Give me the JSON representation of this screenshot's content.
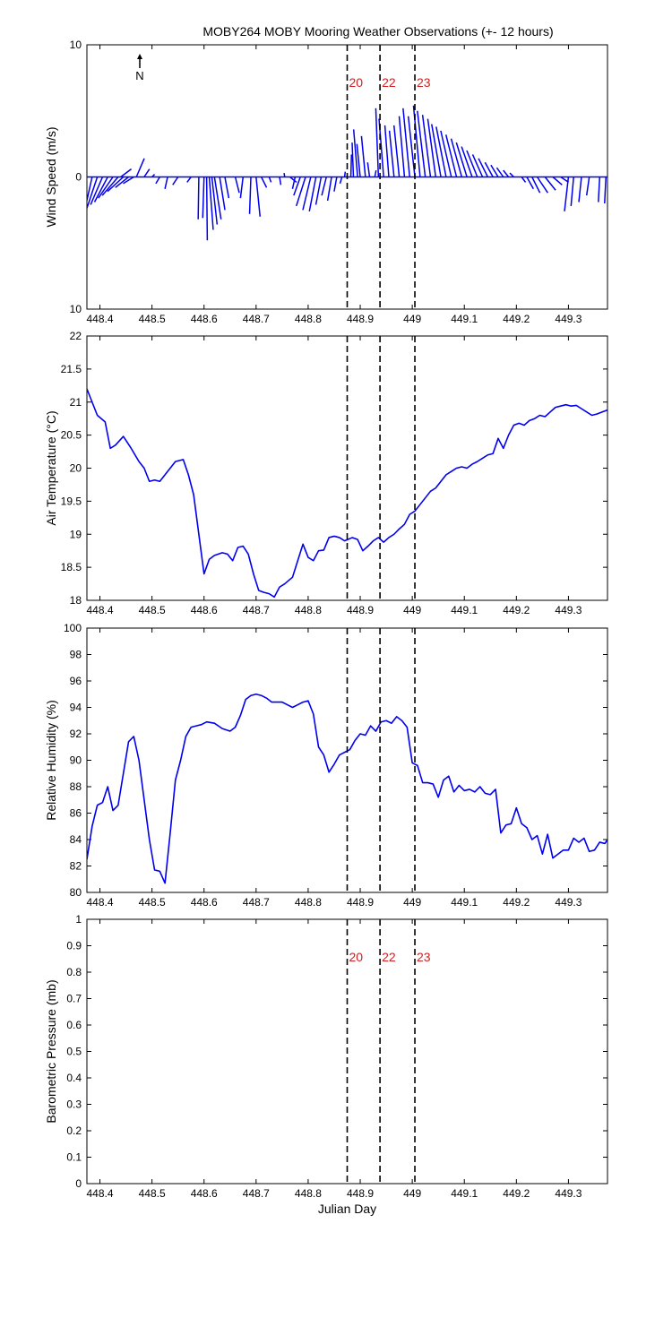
{
  "figure": {
    "title": "MOBY264 MOBY Mooring Weather Observations (+- 12 hours)",
    "north_label": "N"
  },
  "colors": {
    "series": "#0000ee",
    "marker_label": "#cc2222"
  },
  "chart_data": [
    {
      "type": "line",
      "name": "wind",
      "ylabel": "Wind Speed (m/s)",
      "xlabel": "",
      "xlim": [
        448.375,
        449.375
      ],
      "ylim": [
        -10,
        10
      ],
      "ytick_values": [
        -10,
        0,
        10
      ],
      "ytick_labels": [
        "10",
        "0",
        "10"
      ],
      "xtick_values": [
        448.4,
        448.5,
        448.6,
        448.7,
        448.8,
        448.9,
        449.0,
        449.1,
        449.2,
        449.3
      ],
      "xtick_labels": [
        "448.4",
        "448.5",
        "448.6",
        "448.7",
        "448.8",
        "448.9",
        "449",
        "449.1",
        "449.2",
        "449.3"
      ],
      "markers": [
        {
          "x": 448.875,
          "label": "20"
        },
        {
          "x": 448.938,
          "label": "22"
        },
        {
          "x": 449.005,
          "label": "23"
        }
      ],
      "vector_origin_y": 0,
      "vectors": [
        [
          448.375,
          -0.5,
          -3.4
        ],
        [
          448.385,
          -0.6,
          -2.7
        ],
        [
          448.395,
          -0.8,
          -2.4
        ],
        [
          448.405,
          -0.9,
          -2.1
        ],
        [
          448.415,
          -1.0,
          -1.9
        ],
        [
          448.425,
          -1.1,
          -1.6
        ],
        [
          448.435,
          -1.2,
          -1.4
        ],
        [
          448.445,
          -1.2,
          -1.1
        ],
        [
          448.455,
          -1.0,
          -0.8
        ],
        [
          448.465,
          -0.8,
          -0.5
        ],
        [
          448.44,
          0.8,
          0.6
        ],
        [
          448.47,
          0.6,
          1.4
        ],
        [
          448.485,
          0.4,
          0.6
        ],
        [
          448.5,
          0.2,
          0.2
        ],
        [
          448.515,
          -0.3,
          -0.5
        ],
        [
          448.53,
          -0.2,
          -0.9
        ],
        [
          448.55,
          -0.4,
          -0.6
        ],
        [
          448.575,
          -0.3,
          -0.4
        ],
        [
          448.59,
          -0.05,
          -3.2
        ],
        [
          448.6,
          -0.1,
          -3.1
        ],
        [
          448.605,
          0.05,
          -4.8
        ],
        [
          448.61,
          0.3,
          -4.0
        ],
        [
          448.615,
          0.4,
          -3.6
        ],
        [
          448.62,
          0.5,
          -3.2
        ],
        [
          448.63,
          0.4,
          -2.5
        ],
        [
          448.64,
          0.3,
          -1.6
        ],
        [
          448.66,
          0.3,
          -1.2
        ],
        [
          448.675,
          -0.2,
          -1.6
        ],
        [
          448.69,
          -0.1,
          -2.8
        ],
        [
          448.7,
          0.3,
          -3.0
        ],
        [
          448.71,
          0.4,
          -0.8
        ],
        [
          448.725,
          0.15,
          -0.4
        ],
        [
          448.745,
          0.1,
          -0.6
        ],
        [
          448.755,
          -0.05,
          0.3
        ],
        [
          448.765,
          0.5,
          -0.4
        ],
        [
          448.775,
          -0.2,
          -0.9
        ],
        [
          448.785,
          -0.5,
          -1.4
        ],
        [
          448.795,
          -0.7,
          -2.2
        ],
        [
          448.805,
          -0.6,
          -2.5
        ],
        [
          448.815,
          -0.5,
          -2.6
        ],
        [
          448.825,
          -0.4,
          -2.1
        ],
        [
          448.835,
          -0.35,
          -1.4
        ],
        [
          448.845,
          -0.3,
          -1.8
        ],
        [
          448.855,
          -0.2,
          -1.1
        ],
        [
          448.865,
          -0.15,
          -0.5
        ],
        [
          448.87,
          0.05,
          0.4
        ],
        [
          448.882,
          0.05,
          1.7
        ],
        [
          448.887,
          -0.1,
          2.6
        ],
        [
          448.895,
          -0.3,
          3.6
        ],
        [
          448.9,
          -0.25,
          2.5
        ],
        [
          448.91,
          -0.3,
          3.1
        ],
        [
          448.918,
          -0.15,
          1.1
        ],
        [
          448.928,
          0.1,
          0.5
        ],
        [
          448.935,
          -0.2,
          5.2
        ],
        [
          448.945,
          -0.35,
          4.4
        ],
        [
          448.955,
          -0.3,
          3.9
        ],
        [
          448.965,
          -0.35,
          3.5
        ],
        [
          448.975,
          -0.4,
          3.9
        ],
        [
          448.985,
          -0.4,
          4.6
        ],
        [
          448.995,
          -0.5,
          5.2
        ],
        [
          449.005,
          -0.5,
          4.6
        ],
        [
          449.015,
          -0.5,
          5.4
        ],
        [
          449.025,
          -0.6,
          5.0
        ],
        [
          449.035,
          -0.6,
          4.7
        ],
        [
          449.045,
          -0.6,
          4.4
        ],
        [
          449.055,
          -0.7,
          4.0
        ],
        [
          449.065,
          -0.75,
          3.8
        ],
        [
          449.075,
          -0.8,
          3.5
        ],
        [
          449.085,
          -0.8,
          3.2
        ],
        [
          449.095,
          -0.8,
          2.9
        ],
        [
          449.105,
          -0.8,
          2.6
        ],
        [
          449.115,
          -0.8,
          2.3
        ],
        [
          449.125,
          -0.8,
          2.0
        ],
        [
          449.135,
          -0.75,
          1.7
        ],
        [
          449.145,
          -0.7,
          1.4
        ],
        [
          449.155,
          -0.6,
          1.1
        ],
        [
          449.165,
          -0.55,
          0.9
        ],
        [
          449.175,
          -0.5,
          0.7
        ],
        [
          449.185,
          -0.4,
          0.5
        ],
        [
          449.195,
          -0.3,
          0.3
        ],
        [
          449.21,
          0.3,
          -0.4
        ],
        [
          449.22,
          0.5,
          -0.9
        ],
        [
          449.23,
          0.6,
          -1.2
        ],
        [
          449.24,
          0.8,
          -1.2
        ],
        [
          449.255,
          0.8,
          -1.0
        ],
        [
          449.27,
          0.7,
          -0.6
        ],
        [
          449.285,
          0.6,
          -0.4
        ],
        [
          449.3,
          -0.3,
          -2.6
        ],
        [
          449.31,
          -0.2,
          -2.2
        ],
        [
          449.325,
          -0.2,
          -1.9
        ],
        [
          449.34,
          -0.2,
          -1.4
        ],
        [
          449.36,
          -0.1,
          -1.9
        ],
        [
          449.372,
          -0.1,
          -2.0
        ]
      ]
    },
    {
      "type": "line",
      "name": "air_temperature",
      "ylabel": "Air Temperature (°C)",
      "xlabel": "",
      "xlim": [
        448.375,
        449.375
      ],
      "ylim": [
        18,
        22
      ],
      "ytick_values": [
        18,
        18.5,
        19,
        19.5,
        20,
        20.5,
        21,
        21.5,
        22
      ],
      "ytick_labels": [
        "18",
        "18.5",
        "19",
        "19.5",
        "20",
        "20.5",
        "21",
        "21.5",
        "22"
      ],
      "xtick_values": [
        448.4,
        448.5,
        448.6,
        448.7,
        448.8,
        448.9,
        449.0,
        449.1,
        449.2,
        449.3
      ],
      "xtick_labels": [
        "448.4",
        "448.5",
        "448.6",
        "448.7",
        "448.8",
        "448.9",
        "449",
        "449.1",
        "449.2",
        "449.3"
      ],
      "markers": [
        {
          "x": 448.875,
          "label": ""
        },
        {
          "x": 448.938,
          "label": ""
        },
        {
          "x": 449.005,
          "label": ""
        }
      ],
      "x": [
        448.375,
        448.385,
        448.395,
        448.41,
        448.42,
        448.43,
        448.445,
        448.46,
        448.475,
        448.485,
        448.495,
        448.505,
        448.515,
        448.525,
        448.535,
        448.545,
        448.56,
        448.57,
        448.58,
        448.59,
        448.6,
        448.61,
        448.62,
        448.635,
        448.645,
        448.655,
        448.665,
        448.675,
        448.685,
        448.695,
        448.705,
        448.715,
        448.725,
        448.735,
        448.745,
        448.755,
        448.77,
        448.78,
        448.79,
        448.8,
        448.81,
        448.82,
        448.83,
        448.84,
        448.85,
        448.86,
        448.87,
        448.885,
        448.895,
        448.905,
        448.915,
        448.925,
        448.935,
        448.945,
        448.955,
        448.965,
        448.975,
        448.985,
        448.995,
        449.005,
        449.015,
        449.025,
        449.035,
        449.045,
        449.055,
        449.065,
        449.075,
        449.085,
        449.095,
        449.105,
        449.115,
        449.125,
        449.135,
        449.145,
        449.155,
        449.165,
        449.175,
        449.185,
        449.195,
        449.205,
        449.215,
        449.225,
        449.235,
        449.245,
        449.255,
        449.265,
        449.275,
        449.285,
        449.295,
        449.305,
        449.315,
        449.325,
        449.335,
        449.345,
        449.355,
        449.365,
        449.375
      ],
      "y": [
        21.2,
        21.0,
        20.8,
        20.7,
        20.3,
        20.35,
        20.48,
        20.3,
        20.1,
        20.0,
        19.8,
        19.82,
        19.8,
        19.9,
        20.0,
        20.1,
        20.13,
        19.9,
        19.6,
        19.0,
        18.4,
        18.62,
        18.68,
        18.72,
        18.7,
        18.6,
        18.8,
        18.82,
        18.7,
        18.4,
        18.15,
        18.12,
        18.1,
        18.05,
        18.2,
        18.25,
        18.35,
        18.6,
        18.85,
        18.65,
        18.6,
        18.75,
        18.76,
        18.95,
        18.97,
        18.95,
        18.9,
        18.95,
        18.92,
        18.75,
        18.82,
        18.9,
        18.95,
        18.88,
        18.95,
        19.0,
        19.08,
        19.15,
        19.3,
        19.35,
        19.45,
        19.55,
        19.65,
        19.7,
        19.8,
        19.9,
        19.95,
        20.0,
        20.02,
        20.0,
        20.06,
        20.1,
        20.15,
        20.2,
        20.22,
        20.45,
        20.3,
        20.5,
        20.65,
        20.68,
        20.65,
        20.72,
        20.75,
        20.8,
        20.78,
        20.85,
        20.92,
        20.94,
        20.96,
        20.94,
        20.95,
        20.9,
        20.85,
        20.8,
        20.82,
        20.85,
        20.88
      ]
    },
    {
      "type": "line",
      "name": "relative_humidity",
      "ylabel": "Relative Humidity (%)",
      "xlabel": "",
      "xlim": [
        448.375,
        449.375
      ],
      "ylim": [
        80,
        100
      ],
      "ytick_values": [
        80,
        82,
        84,
        86,
        88,
        90,
        92,
        94,
        96,
        98,
        100
      ],
      "ytick_labels": [
        "80",
        "82",
        "84",
        "86",
        "88",
        "90",
        "92",
        "94",
        "96",
        "98",
        "100"
      ],
      "xtick_values": [
        448.4,
        448.5,
        448.6,
        448.7,
        448.8,
        448.9,
        449.0,
        449.1,
        449.2,
        449.3
      ],
      "xtick_labels": [
        "448.4",
        "448.5",
        "448.6",
        "448.7",
        "448.8",
        "448.9",
        "449",
        "449.1",
        "449.2",
        "449.3"
      ],
      "markers": [
        {
          "x": 448.875,
          "label": ""
        },
        {
          "x": 448.938,
          "label": ""
        },
        {
          "x": 449.005,
          "label": ""
        }
      ],
      "x": [
        448.375,
        448.385,
        448.395,
        448.405,
        448.415,
        448.425,
        448.435,
        448.445,
        448.455,
        448.465,
        448.475,
        448.485,
        448.495,
        448.505,
        448.515,
        448.525,
        448.535,
        448.545,
        448.555,
        448.565,
        448.575,
        448.585,
        448.595,
        448.605,
        448.62,
        448.635,
        448.65,
        448.66,
        448.67,
        448.68,
        448.69,
        448.7,
        448.71,
        448.72,
        448.73,
        448.74,
        448.75,
        448.76,
        448.77,
        448.78,
        448.79,
        448.8,
        448.81,
        448.82,
        448.83,
        448.84,
        448.85,
        448.86,
        448.87,
        448.88,
        448.89,
        448.9,
        448.91,
        448.92,
        448.93,
        448.94,
        448.95,
        448.96,
        448.97,
        448.98,
        448.99,
        449.0,
        449.01,
        449.02,
        449.03,
        449.04,
        449.05,
        449.06,
        449.07,
        449.08,
        449.09,
        449.1,
        449.11,
        449.12,
        449.13,
        449.14,
        449.15,
        449.16,
        449.17,
        449.18,
        449.19,
        449.2,
        449.21,
        449.22,
        449.23,
        449.24,
        449.25,
        449.26,
        449.27,
        449.28,
        449.29,
        449.3,
        449.31,
        449.32,
        449.33,
        449.34,
        449.35,
        449.36,
        449.37,
        449.375
      ],
      "y": [
        82.5,
        85.0,
        86.6,
        86.8,
        88.0,
        86.2,
        86.6,
        89.0,
        91.4,
        91.8,
        90.0,
        87.0,
        84.0,
        81.7,
        81.6,
        80.7,
        84.5,
        88.5,
        90.0,
        91.8,
        92.5,
        92.6,
        92.7,
        92.9,
        92.8,
        92.4,
        92.2,
        92.5,
        93.4,
        94.6,
        94.9,
        95.0,
        94.9,
        94.7,
        94.4,
        94.4,
        94.4,
        94.2,
        94.0,
        94.2,
        94.4,
        94.5,
        93.5,
        91.0,
        90.4,
        89.1,
        89.7,
        90.4,
        90.6,
        90.8,
        91.5,
        92.0,
        91.9,
        92.6,
        92.2,
        92.9,
        93.0,
        92.8,
        93.3,
        93.0,
        92.5,
        89.8,
        89.6,
        88.3,
        88.3,
        88.2,
        87.2,
        88.5,
        88.8,
        87.6,
        88.1,
        87.7,
        87.8,
        87.6,
        88.0,
        87.5,
        87.4,
        87.8,
        84.5,
        85.1,
        85.2,
        86.4,
        85.2,
        84.9,
        84.0,
        84.3,
        82.9,
        84.4,
        82.6,
        82.9,
        83.2,
        83.2,
        84.1,
        83.8,
        84.1,
        83.1,
        83.2,
        83.8,
        83.7,
        84.0
      ]
    },
    {
      "type": "line",
      "name": "barometric_pressure",
      "ylabel": "Barometric Pressure (mb)",
      "xlabel": "Julian Day",
      "xlim": [
        448.375,
        449.375
      ],
      "ylim": [
        0,
        1
      ],
      "ytick_values": [
        0,
        0.1,
        0.2,
        0.3,
        0.4,
        0.5,
        0.6,
        0.7,
        0.8,
        0.9,
        1
      ],
      "ytick_labels": [
        "0",
        "0.1",
        "0.2",
        "0.3",
        "0.4",
        "0.5",
        "0.6",
        "0.7",
        "0.8",
        "0.9",
        "1"
      ],
      "xtick_values": [
        448.4,
        448.5,
        448.6,
        448.7,
        448.8,
        448.9,
        449.0,
        449.1,
        449.2,
        449.3
      ],
      "xtick_labels": [
        "448.4",
        "448.5",
        "448.6",
        "448.7",
        "448.8",
        "448.9",
        "449",
        "449.1",
        "449.2",
        "449.3"
      ],
      "markers": [
        {
          "x": 448.875,
          "label": "20"
        },
        {
          "x": 448.938,
          "label": "22"
        },
        {
          "x": 449.005,
          "label": "23"
        }
      ],
      "x": [],
      "y": []
    }
  ]
}
